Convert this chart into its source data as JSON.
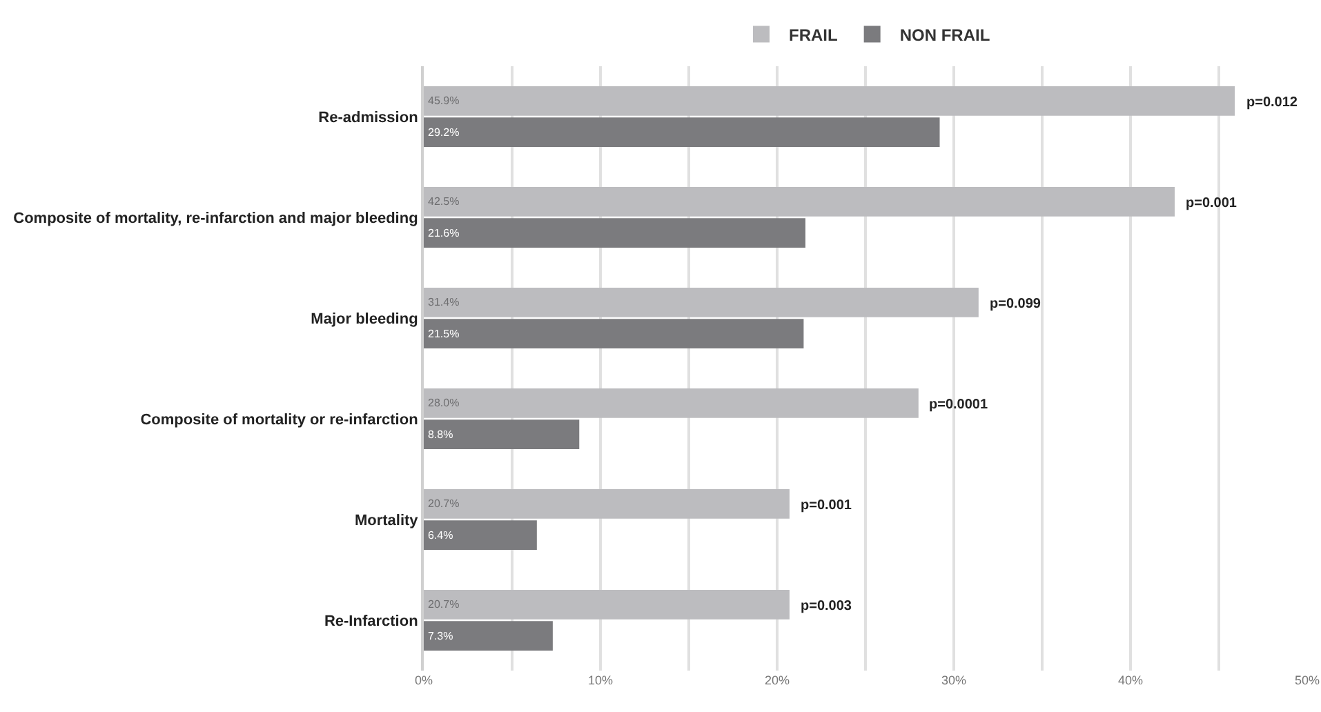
{
  "chart_data": {
    "type": "bar",
    "orientation": "horizontal",
    "categories": [
      "Re-admission",
      "Composite of mortality, re-infarction and major bleeding",
      "Major bleeding",
      "Composite of mortality or re-infarction",
      "Mortality",
      "Re-Infarction"
    ],
    "series": [
      {
        "name": "FRAIL",
        "color": "#bcbcbf",
        "values": [
          45.9,
          42.5,
          31.4,
          28.0,
          20.7,
          20.7
        ],
        "value_labels": [
          "45.9%",
          "42.5%",
          "31.4%",
          "28.0%",
          "20.7%",
          "20.7%"
        ]
      },
      {
        "name": "NON FRAIL",
        "color": "#7b7b7e",
        "values": [
          29.2,
          21.6,
          21.5,
          8.8,
          6.4,
          7.3
        ],
        "value_labels": [
          "29.2%",
          "21.6%",
          "21.5%",
          "8.8%",
          "6.4%",
          "7.3%"
        ]
      }
    ],
    "xlim": [
      0,
      50
    ],
    "xticks": [
      {
        "value": 0,
        "label": "0%"
      },
      {
        "value": 5,
        "label": null
      },
      {
        "value": 10,
        "label": "10%"
      },
      {
        "value": 15,
        "label": null
      },
      {
        "value": 20,
        "label": "20%"
      },
      {
        "value": 25,
        "label": null
      },
      {
        "value": 30,
        "label": "30%"
      },
      {
        "value": 35,
        "label": null
      },
      {
        "value": 40,
        "label": "40%"
      },
      {
        "value": 45,
        "label": null
      },
      {
        "value": 50,
        "label": "50%"
      }
    ],
    "grid": "x",
    "legend": "top",
    "annotations": [
      {
        "text": "p=0.012",
        "x": 45.9,
        "y": "Re-admission"
      },
      {
        "text": "p=0.001",
        "x": 42.5,
        "y": "Composite of mortality, re-infarction and major bleeding"
      },
      {
        "text": "p=0.099",
        "x": 31.4,
        "y": "Major bleeding"
      },
      {
        "text": "p=0.0001",
        "x": 28.0,
        "y": "Composite of mortality or re-infarction"
      },
      {
        "text": "p=0.001",
        "x": 20.7,
        "y": "Mortality"
      },
      {
        "text": "p=0.003",
        "x": 20.7,
        "y": "Re-Infarction"
      }
    ]
  }
}
